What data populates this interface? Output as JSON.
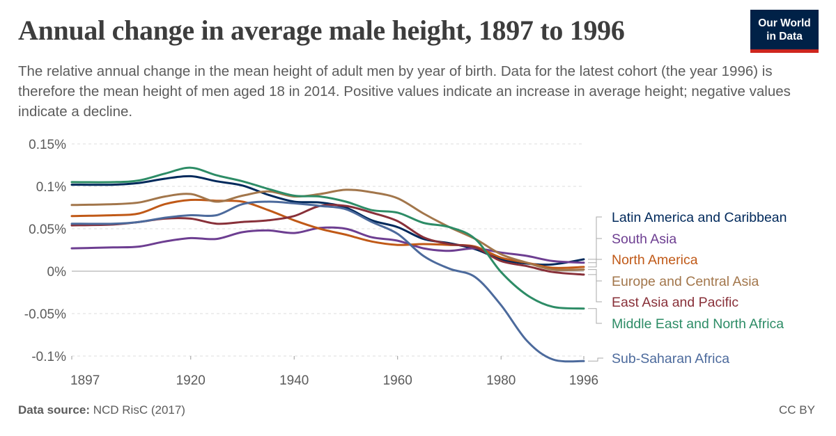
{
  "header": {
    "title": "Annual change in average male height, 1897 to 1996",
    "subtitle": "The relative annual change in the mean height of adult men by year of birth. Data for the latest cohort (the year 1996) is therefore the mean height of men aged 18 in 2014. Positive values indicate an increase in average height; negative values indicate a decline."
  },
  "logo": {
    "line1": "Our World",
    "line2": "in Data",
    "bg_color": "#002147",
    "accent_color": "#ce261e"
  },
  "footer": {
    "source_label": "Data source:",
    "source_value": "NCD RisC (2017)",
    "license": "CC BY"
  },
  "chart_data": {
    "type": "line",
    "title": "Annual change in average male height, 1897 to 1996",
    "xlabel": "",
    "ylabel": "",
    "xlim": [
      1897,
      1996
    ],
    "ylim": [
      -0.1,
      0.15
    ],
    "x_ticks": [
      1897,
      1920,
      1940,
      1960,
      1980,
      1996
    ],
    "y_ticks": [
      {
        "value": -0.1,
        "label": "-0.1%"
      },
      {
        "value": -0.05,
        "label": "-0.05%"
      },
      {
        "value": 0,
        "label": "0%"
      },
      {
        "value": 0.05,
        "label": "0.05%"
      },
      {
        "value": 0.1,
        "label": "0.1%"
      },
      {
        "value": 0.15,
        "label": "0.15%"
      }
    ],
    "grid": "horizontal-dashed",
    "legend": "right-end-labels",
    "x": [
      1897,
      1905,
      1910,
      1915,
      1920,
      1925,
      1930,
      1935,
      1940,
      1945,
      1950,
      1955,
      1960,
      1965,
      1970,
      1975,
      1980,
      1985,
      1990,
      1996
    ],
    "series": [
      {
        "name": "Latin America and Caribbean",
        "color": "#00295b",
        "values": [
          0.102,
          0.102,
          0.104,
          0.109,
          0.112,
          0.106,
          0.101,
          0.09,
          0.082,
          0.081,
          0.075,
          0.06,
          0.052,
          0.038,
          0.033,
          0.026,
          0.014,
          0.009,
          0.008,
          0.014
        ]
      },
      {
        "name": "South Asia",
        "color": "#6d3e91",
        "values": [
          0.027,
          0.028,
          0.029,
          0.035,
          0.039,
          0.038,
          0.046,
          0.048,
          0.045,
          0.051,
          0.05,
          0.04,
          0.036,
          0.027,
          0.024,
          0.027,
          0.022,
          0.018,
          0.012,
          0.01
        ]
      },
      {
        "name": "North America",
        "color": "#c15065",
        "values": [
          0.065,
          0.066,
          0.068,
          0.079,
          0.084,
          0.083,
          0.082,
          0.072,
          0.06,
          0.05,
          0.043,
          0.035,
          0.031,
          0.032,
          0.031,
          0.029,
          0.016,
          0.01,
          0.004,
          0.005
        ]
      },
      {
        "name": "Europe and Central Asia",
        "color": "#a2764b",
        "values": [
          0.078,
          0.079,
          0.081,
          0.088,
          0.091,
          0.082,
          0.089,
          0.094,
          0.088,
          0.091,
          0.096,
          0.093,
          0.086,
          0.068,
          0.052,
          0.038,
          0.02,
          0.01,
          0.002,
          0.002
        ]
      },
      {
        "name": "East Asia and Pacific",
        "color": "#883039",
        "values": [
          0.054,
          0.055,
          0.058,
          0.062,
          0.062,
          0.056,
          0.058,
          0.06,
          0.065,
          0.077,
          0.077,
          0.069,
          0.059,
          0.04,
          0.032,
          0.028,
          0.012,
          0.006,
          -0.001,
          -0.004
        ]
      },
      {
        "name": "Middle East and North Africa",
        "color": "#2d8c66",
        "values": [
          0.105,
          0.105,
          0.107,
          0.115,
          0.122,
          0.113,
          0.106,
          0.097,
          0.089,
          0.088,
          0.082,
          0.072,
          0.069,
          0.057,
          0.052,
          0.038,
          -0.001,
          -0.028,
          -0.042,
          -0.044
        ]
      },
      {
        "name": "Sub-Saharan Africa",
        "color": "#4c6a9c",
        "values": [
          0.056,
          0.056,
          0.058,
          0.063,
          0.066,
          0.066,
          0.079,
          0.082,
          0.08,
          0.077,
          0.073,
          0.058,
          0.044,
          0.018,
          0.003,
          -0.007,
          -0.04,
          -0.082,
          -0.104,
          -0.106
        ]
      }
    ]
  }
}
